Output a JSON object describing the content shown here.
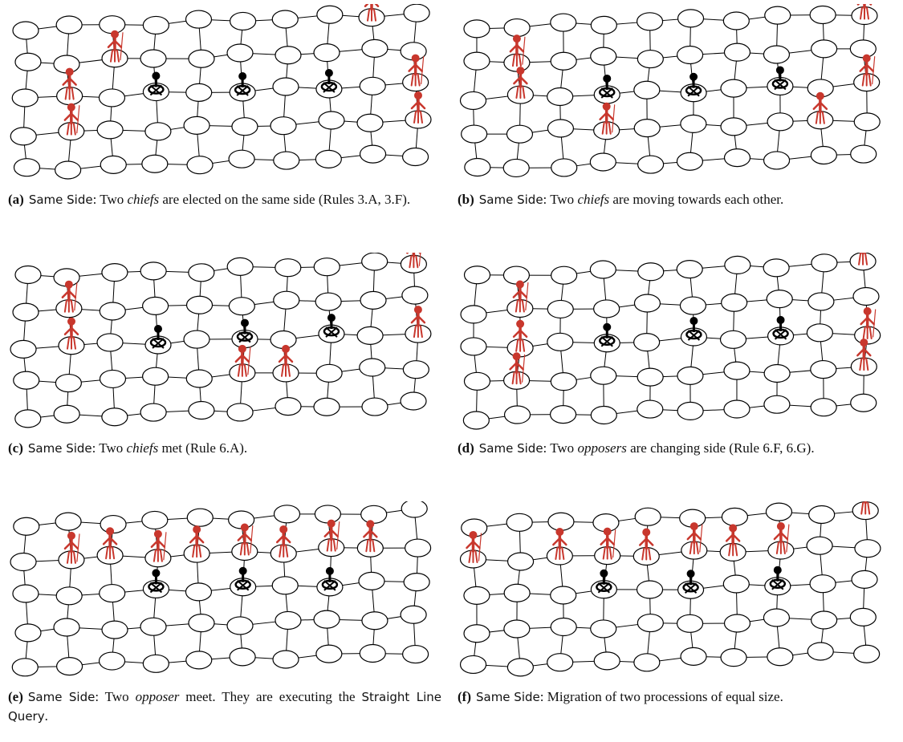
{
  "panels": [
    {
      "caption": [
        {
          "text": "(a)",
          "style": "bold"
        },
        {
          "text": "Same Side",
          "style": "sans"
        },
        {
          "text": ": Two ",
          "style": "serif"
        },
        {
          "text": "chiefs",
          "style": "italic"
        },
        {
          "text": " are elected on the same side (Rules 3.A, 3.F).",
          "style": "serif"
        }
      ]
    },
    {
      "caption": [
        {
          "text": "(b)",
          "style": "bold"
        },
        {
          "text": "Same Side",
          "style": "sans"
        },
        {
          "text": ": Two ",
          "style": "serif"
        },
        {
          "text": "chiefs",
          "style": "italic"
        },
        {
          "text": " are moving towards each other.",
          "style": "serif"
        }
      ]
    },
    {
      "caption": [
        {
          "text": "(c)",
          "style": "bold"
        },
        {
          "text": "Same Side",
          "style": "sans"
        },
        {
          "text": ": Two ",
          "style": "serif"
        },
        {
          "text": "chiefs",
          "style": "italic"
        },
        {
          "text": " met (Rule 6.A).",
          "style": "serif"
        }
      ]
    },
    {
      "caption": [
        {
          "text": "(d)",
          "style": "bold"
        },
        {
          "text": "Same Side",
          "style": "sans"
        },
        {
          "text": ": Two ",
          "style": "serif"
        },
        {
          "text": "opposers",
          "style": "italic"
        },
        {
          "text": " are changing side (Rule 6.F, 6.G).",
          "style": "serif"
        }
      ]
    },
    {
      "caption": [
        {
          "text": "(e)",
          "style": "bold"
        },
        {
          "text": "Same Side",
          "style": "sans"
        },
        {
          "text": ": Two ",
          "style": "serif"
        },
        {
          "text": "opposer",
          "style": "italic"
        },
        {
          "text": " meet. They are executing the ",
          "style": "serif"
        },
        {
          "text": "Straight Line Query",
          "style": "sans"
        },
        {
          "text": ".",
          "style": "serif"
        }
      ]
    },
    {
      "caption": [
        {
          "text": "(f)",
          "style": "bold"
        },
        {
          "text": "Same Side",
          "style": "sans"
        },
        {
          "text": ": Migration of two processions of equal size.",
          "style": "serif"
        }
      ]
    }
  ]
}
